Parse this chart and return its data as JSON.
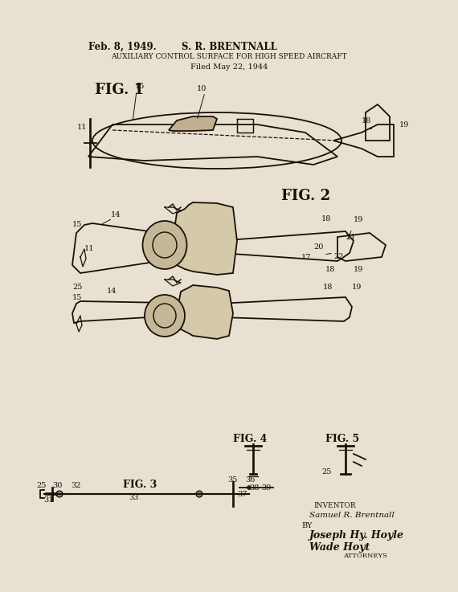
{
  "bg_color": "#e8e0d0",
  "text_color": "#1a1008",
  "date_line": "Feb. 8, 1949.",
  "inventor_name": "S. R. BRENTNALL",
  "patent_title": "AUXILIARY CONTROL SURFACE FOR HIGH SPEED AIRCRAFT",
  "filed_line": "Filed May 22, 1944",
  "fig1_label": "FIG. 1",
  "fig2_label": "FIG. 2",
  "fig3_label": "FIG. 3",
  "fig4_label": "FIG. 4",
  "fig5_label": "FIG. 5",
  "inventor_label": "INVENTOR",
  "inventor_sig": "Samuel R. Brentnall",
  "attorney_by": "BY",
  "attorney_sig1": "Joseph Hy. Hoyle",
  "attorney_sig2": "Wade Hoyt",
  "attorney_label": "ATTORNEYS"
}
